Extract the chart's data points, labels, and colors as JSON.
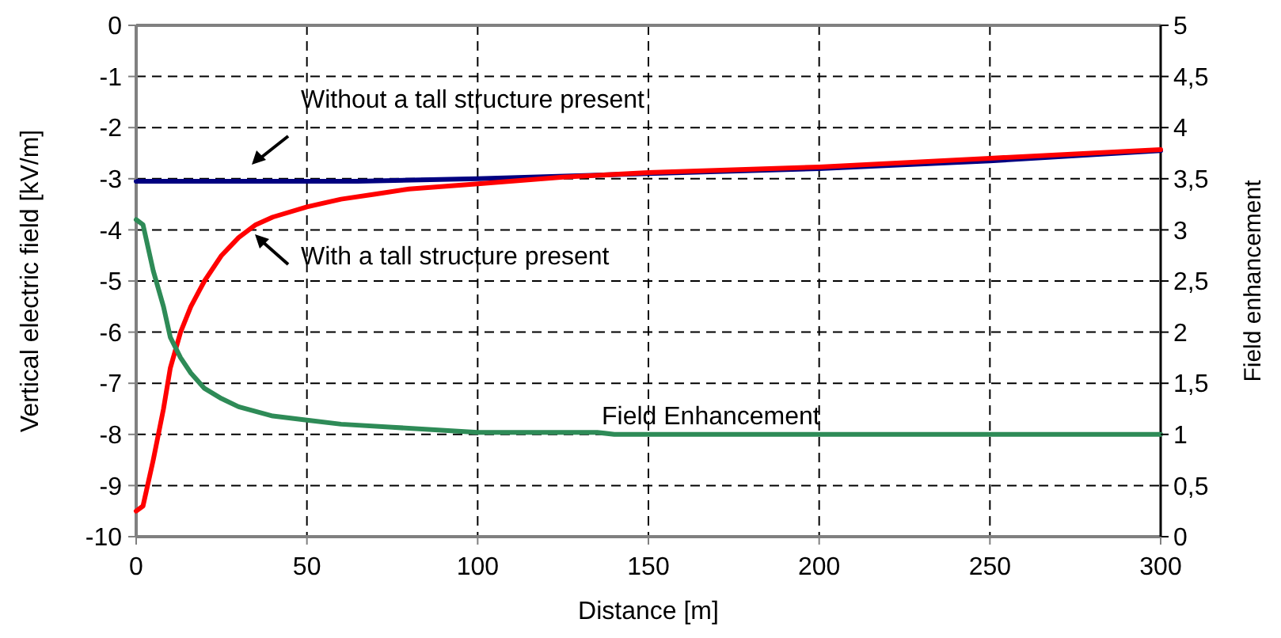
{
  "chart_data": {
    "type": "line",
    "xlabel": "Distance [m]",
    "ylabel": "Vertical electric field [kV/m]",
    "y2label": "Field enhancement",
    "xlim": [
      0,
      300
    ],
    "xticks": [
      0,
      50,
      100,
      150,
      200,
      250,
      300
    ],
    "ylim": [
      -10,
      0
    ],
    "yticks": [
      -10,
      -9,
      -8,
      -7,
      -6,
      -5,
      -4,
      -3,
      -2,
      -1,
      0
    ],
    "y2lim": [
      0,
      5
    ],
    "y2ticks": [
      0,
      {
        "value": 0.5,
        "label": "0,5"
      },
      1,
      {
        "value": 1.5,
        "label": "1,5"
      },
      2,
      {
        "value": 2.5,
        "label": "2,5"
      },
      3,
      {
        "value": 3.5,
        "label": "3,5"
      },
      4,
      {
        "value": 4.5,
        "label": "4,5"
      },
      5
    ],
    "grid": true,
    "marker": "none",
    "line_style": "solid",
    "series": [
      {
        "color": "#000080",
        "x": [
          0,
          65,
          100,
          150,
          200,
          250,
          300
        ],
        "values": [
          -3.05,
          -3.05,
          -3.0,
          -2.9,
          -2.8,
          -2.65,
          -2.45
        ]
      },
      {
        "color": "#ff0000",
        "x": [
          0,
          2,
          5,
          8,
          10,
          13,
          16,
          20,
          25,
          30,
          35,
          40,
          50,
          60,
          70,
          80,
          100,
          125,
          150,
          200,
          250,
          300
        ],
        "values": [
          -9.5,
          -9.4,
          -8.5,
          -7.5,
          -6.7,
          -6.0,
          -5.5,
          -5.0,
          -4.5,
          -4.15,
          -3.9,
          -3.75,
          -3.55,
          -3.4,
          -3.3,
          -3.2,
          -3.1,
          -2.97,
          -2.88,
          -2.77,
          -2.6,
          -2.43
        ]
      },
      {
        "color": "#2e8b57",
        "axis": "y2",
        "x": [
          0,
          2,
          5,
          8,
          10,
          13,
          16,
          20,
          25,
          30,
          40,
          50,
          60,
          75,
          100,
          135,
          140,
          300
        ],
        "values": [
          3.1,
          3.05,
          2.6,
          2.25,
          1.95,
          1.75,
          1.6,
          1.45,
          1.35,
          1.27,
          1.18,
          1.14,
          1.1,
          1.07,
          1.02,
          1.02,
          1.0,
          1.0
        ]
      }
    ],
    "annotations": [
      "Without a tall structure present",
      "With a tall structure present",
      "Field Enhancement"
    ]
  }
}
